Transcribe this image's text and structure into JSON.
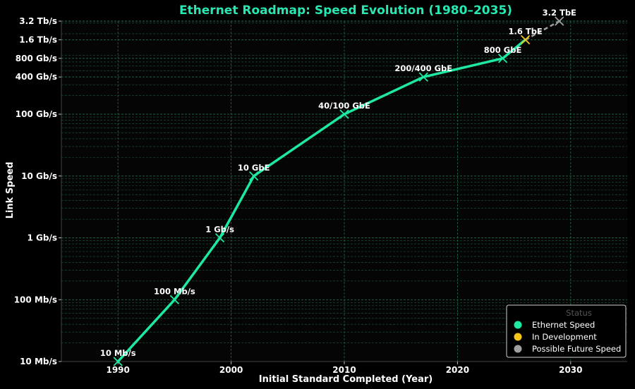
{
  "chart_data": {
    "type": "line",
    "title": "Ethernet Roadmap: Speed Evolution (1980–2035)",
    "xlabel": "Initial Standard Completed (Year)",
    "ylabel": "Link Speed",
    "xlim": [
      1985,
      2035
    ],
    "ylim_gbps": [
      0.01,
      3200
    ],
    "yscale": "log",
    "grid": true,
    "x_ticks": [
      1990,
      2000,
      2010,
      2020,
      2030
    ],
    "y_ticks": [
      {
        "value": 0.01,
        "label": "10 Mb/s"
      },
      {
        "value": 0.1,
        "label": "100 Mb/s"
      },
      {
        "value": 1,
        "label": "1 Gb/s"
      },
      {
        "value": 10,
        "label": "10 Gb/s"
      },
      {
        "value": 100,
        "label": "100 Gb/s"
      },
      {
        "value": 400,
        "label": "400 Gb/s"
      },
      {
        "value": 800,
        "label": "800 Gb/s"
      },
      {
        "value": 1600,
        "label": "1.6 Tb/s"
      },
      {
        "value": 3200,
        "label": "3.2 Tb/s"
      }
    ],
    "points": [
      {
        "year": 1990,
        "speed_gbps": 0.01,
        "label": "10 Mb/s",
        "status": "Ethernet Speed"
      },
      {
        "year": 1995,
        "speed_gbps": 0.1,
        "label": "100 Mb/s",
        "status": "Ethernet Speed"
      },
      {
        "year": 1999,
        "speed_gbps": 1,
        "label": "1 Gb/s",
        "status": "Ethernet Speed"
      },
      {
        "year": 2002,
        "speed_gbps": 10,
        "label": "10 GbE",
        "status": "Ethernet Speed"
      },
      {
        "year": 2010,
        "speed_gbps": 100,
        "label": "40/100 GbE",
        "status": "Ethernet Speed"
      },
      {
        "year": 2017,
        "speed_gbps": 400,
        "label": "200/400 GbE",
        "status": "Ethernet Speed"
      },
      {
        "year": 2024,
        "speed_gbps": 800,
        "label": "800 GbE",
        "status": "Ethernet Speed"
      },
      {
        "year": 2026,
        "speed_gbps": 1600,
        "label": "1.6 TbE",
        "status": "In Development"
      },
      {
        "year": 2029,
        "speed_gbps": 3200,
        "label": "3.2 TbE",
        "status": "Possible Future Speed"
      }
    ],
    "legend": {
      "title": "Status",
      "placement": "bottom-right",
      "entries": [
        {
          "name": "Ethernet Speed",
          "color": "#1de9a0"
        },
        {
          "name": "In Development",
          "color": "#f5c518"
        },
        {
          "name": "Possible Future Speed",
          "color": "#a0a0a0"
        }
      ]
    },
    "colors": {
      "line": "#1de9a0",
      "future_line": "#a0a0a0",
      "grid": "#1f6b48",
      "title": "#27e8b2"
    }
  }
}
